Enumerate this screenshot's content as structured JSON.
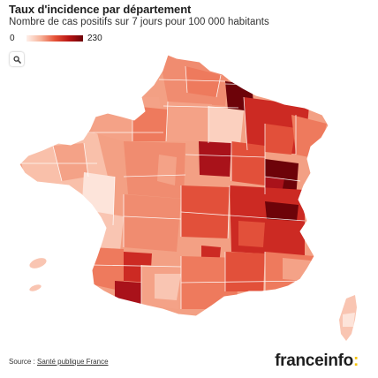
{
  "header": {
    "title": "Taux d'incidence par département",
    "subtitle": "Nombre de cas positifs sur 7 jours pour 100 000 habitants"
  },
  "legend": {
    "min_label": "0",
    "max_label": "230",
    "color_low": "#fff0ea",
    "color_high": "#6d0309"
  },
  "controls": {
    "search_icon": "magnifier-icon"
  },
  "map": {
    "country": "France",
    "scale_min": 0,
    "scale_max": 230,
    "palette": [
      "#fde4da",
      "#f9c5b2",
      "#f4a287",
      "#ee7a5d",
      "#e2503a",
      "#cc2a23",
      "#a9121a",
      "#6d0309"
    ]
  },
  "footer": {
    "source_prefix": "Source : ",
    "source_link": "Santé publique France",
    "brand_main": "franceinfo",
    "brand_colon": ":"
  }
}
